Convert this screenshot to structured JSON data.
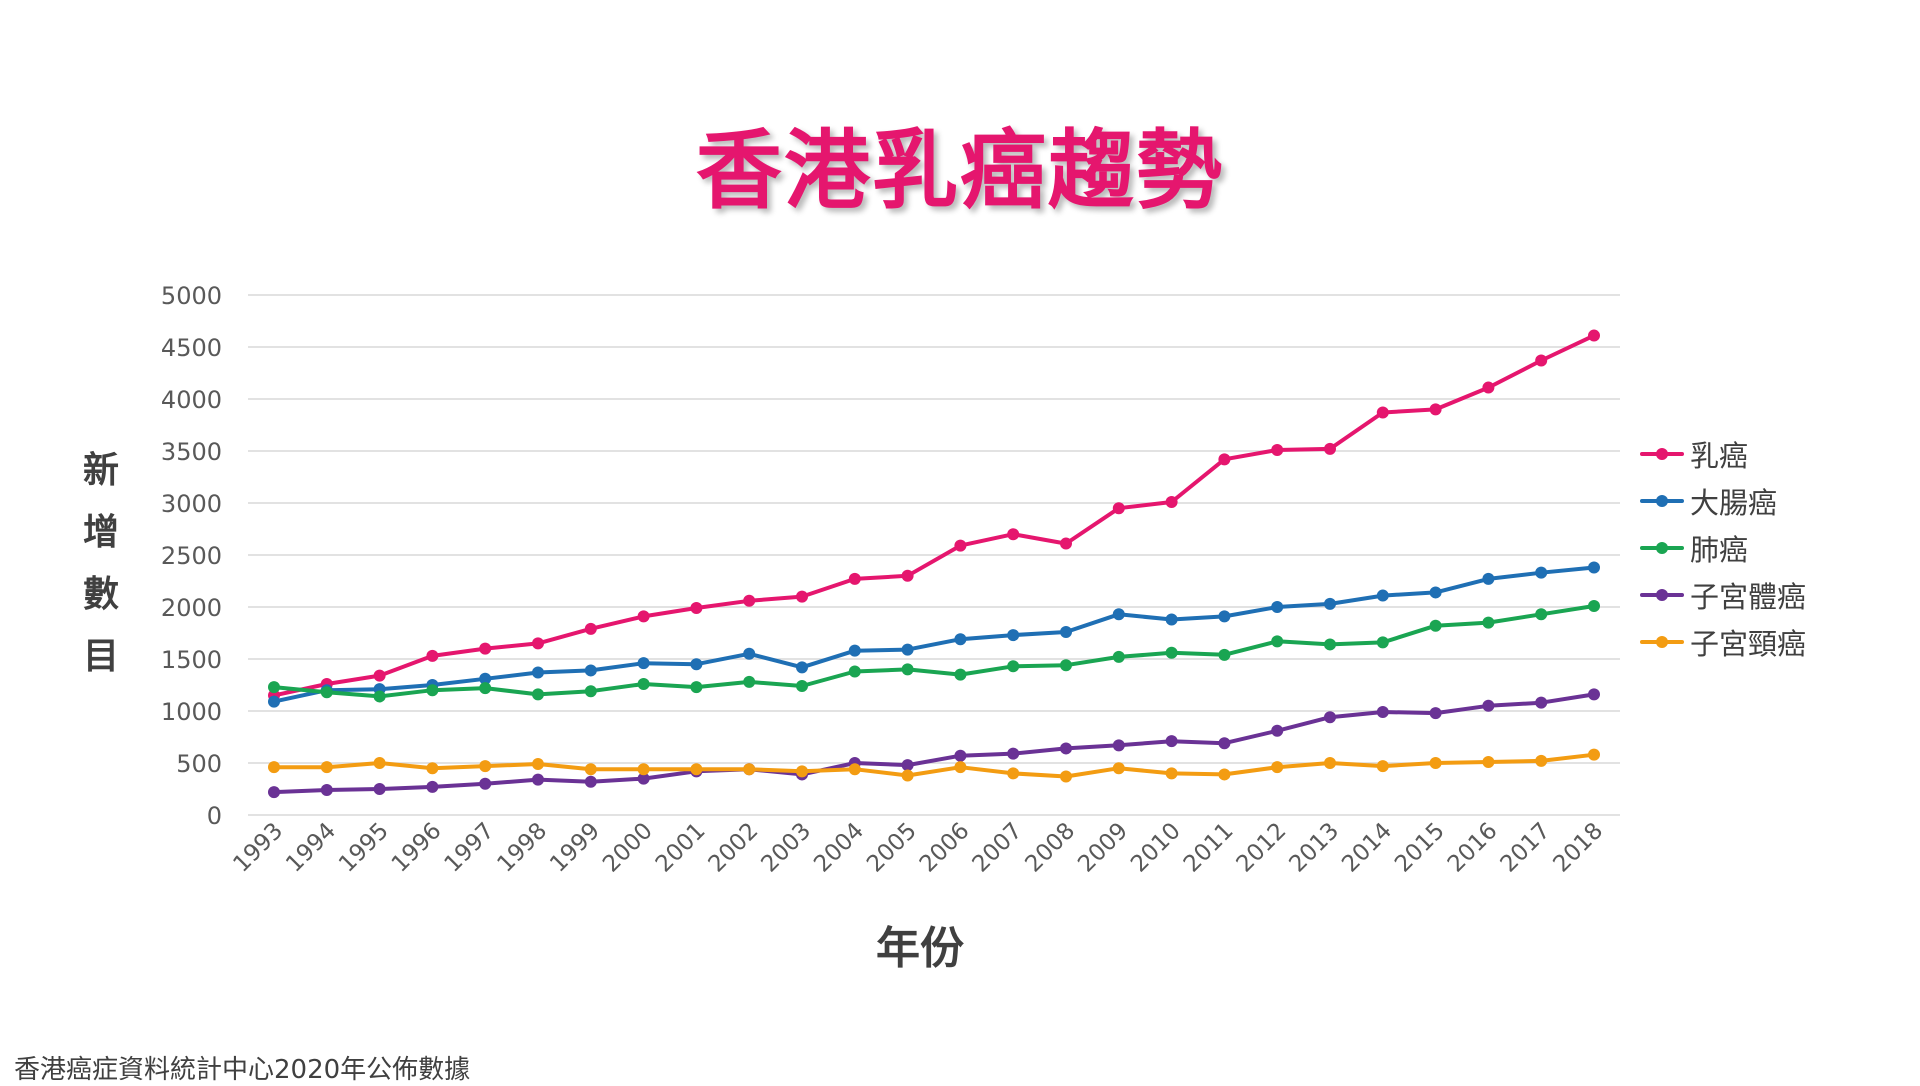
{
  "chart_data": {
    "type": "line",
    "title": "香港乳癌趨勢",
    "xlabel": "年份",
    "ylabel": "新增數目",
    "source_note": "香港癌症資料統計中心2020年公佈數據",
    "ylim": [
      0,
      5000
    ],
    "yticks": [
      "0",
      "500",
      "1000",
      "1500",
      "2000",
      "2500",
      "3000",
      "3500",
      "4000",
      "4500",
      "5000"
    ],
    "categories": [
      "1993",
      "1994",
      "1995",
      "1996",
      "1997",
      "1998",
      "1999",
      "2000",
      "2001",
      "2002",
      "2003",
      "2004",
      "2005",
      "2006",
      "2007",
      "2008",
      "2009",
      "2010",
      "2011",
      "2012",
      "2013",
      "2014",
      "2015",
      "2016",
      "2017",
      "2018"
    ],
    "grid": true,
    "legend_position": "right",
    "series": [
      {
        "name": "乳癌",
        "color": "#e5166e",
        "values": [
          1150,
          1260,
          1340,
          1530,
          1600,
          1650,
          1790,
          1910,
          1990,
          2060,
          2100,
          2270,
          2300,
          2590,
          2700,
          2610,
          2950,
          3010,
          3420,
          3510,
          3520,
          3870,
          3900,
          4110,
          4370,
          4610
        ]
      },
      {
        "name": "大腸癌",
        "color": "#1f6fb4",
        "values": [
          1090,
          1200,
          1210,
          1250,
          1310,
          1370,
          1390,
          1460,
          1450,
          1550,
          1420,
          1580,
          1590,
          1690,
          1730,
          1760,
          1930,
          1880,
          1910,
          2000,
          2030,
          2110,
          2140,
          2270,
          2330,
          2380
        ]
      },
      {
        "name": "肺癌",
        "color": "#1aa552",
        "values": [
          1230,
          1180,
          1140,
          1200,
          1220,
          1160,
          1190,
          1260,
          1230,
          1280,
          1240,
          1380,
          1400,
          1350,
          1430,
          1440,
          1520,
          1560,
          1540,
          1670,
          1640,
          1660,
          1820,
          1850,
          1930,
          2010
        ]
      },
      {
        "name": "子宮體癌",
        "color": "#6a3295",
        "values": [
          220,
          240,
          250,
          270,
          300,
          340,
          320,
          350,
          420,
          440,
          390,
          500,
          480,
          570,
          590,
          640,
          670,
          710,
          690,
          810,
          940,
          990,
          980,
          1050,
          1080,
          1160
        ]
      },
      {
        "name": "子宮頸癌",
        "color": "#f39c12",
        "values": [
          460,
          460,
          500,
          450,
          470,
          490,
          440,
          440,
          440,
          440,
          420,
          440,
          380,
          460,
          400,
          370,
          450,
          400,
          390,
          460,
          500,
          470,
          500,
          510,
          520,
          580
        ]
      }
    ]
  }
}
